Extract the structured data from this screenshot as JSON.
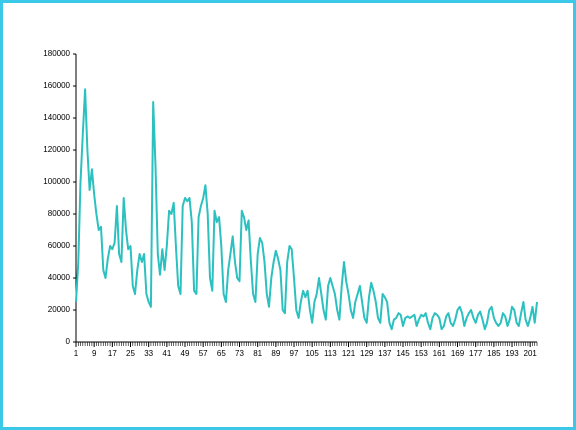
{
  "chart_data": {
    "type": "line",
    "x": [
      1,
      2,
      3,
      4,
      5,
      6,
      7,
      8,
      9,
      10,
      11,
      12,
      13,
      14,
      15,
      16,
      17,
      18,
      19,
      20,
      21,
      22,
      23,
      24,
      25,
      26,
      27,
      28,
      29,
      30,
      31,
      32,
      33,
      34,
      35,
      36,
      37,
      38,
      39,
      40,
      41,
      42,
      43,
      44,
      45,
      46,
      47,
      48,
      49,
      50,
      51,
      52,
      53,
      54,
      55,
      56,
      57,
      58,
      59,
      60,
      61,
      62,
      63,
      64,
      65,
      66,
      67,
      68,
      69,
      70,
      71,
      72,
      73,
      74,
      75,
      76,
      77,
      78,
      79,
      80,
      81,
      82,
      83,
      84,
      85,
      86,
      87,
      88,
      89,
      90,
      91,
      92,
      93,
      94,
      95,
      96,
      97,
      98,
      99,
      100,
      101,
      102,
      103,
      104,
      105,
      106,
      107,
      108,
      109,
      110,
      111,
      112,
      113,
      114,
      115,
      116,
      117,
      118,
      119,
      120,
      121,
      122,
      123,
      124,
      125,
      126,
      127,
      128,
      129,
      130,
      131,
      132,
      133,
      134,
      135,
      136,
      137,
      138,
      139,
      140,
      141,
      142,
      143,
      144,
      145,
      146,
      147,
      148,
      149,
      150,
      151,
      152,
      153,
      154,
      155,
      156,
      157,
      158,
      159,
      160,
      161,
      162,
      163,
      164,
      165,
      166,
      167,
      168,
      169,
      170,
      171,
      172,
      173,
      174,
      175,
      176,
      177,
      178,
      179,
      180,
      181,
      182,
      183,
      184,
      185,
      186,
      187,
      188,
      189,
      190,
      191,
      192,
      193,
      194,
      195,
      196,
      197,
      198,
      199,
      200,
      201,
      202,
      203,
      204
    ],
    "series": [
      {
        "color": "#2cc0c0",
        "values": [
          25000,
          50000,
          100000,
          130000,
          158000,
          120000,
          95000,
          108000,
          92000,
          80000,
          70000,
          72000,
          45000,
          40000,
          52000,
          60000,
          58000,
          62000,
          85000,
          55000,
          50000,
          90000,
          70000,
          58000,
          60000,
          35000,
          30000,
          45000,
          55000,
          50000,
          55000,
          30000,
          25000,
          22000,
          150000,
          110000,
          55000,
          42000,
          58000,
          45000,
          60000,
          82000,
          80000,
          87000,
          60000,
          35000,
          30000,
          85000,
          90000,
          88000,
          90000,
          75000,
          32000,
          30000,
          78000,
          85000,
          90000,
          98000,
          80000,
          40000,
          32000,
          82000,
          75000,
          78000,
          60000,
          30000,
          25000,
          45000,
          55000,
          66000,
          50000,
          40000,
          38000,
          82000,
          78000,
          70000,
          76000,
          50000,
          30000,
          25000,
          55000,
          65000,
          62000,
          50000,
          30000,
          22000,
          40000,
          50000,
          57000,
          52000,
          45000,
          20000,
          18000,
          50000,
          60000,
          58000,
          40000,
          20000,
          15000,
          25000,
          32000,
          28000,
          32000,
          20000,
          12000,
          25000,
          30000,
          40000,
          30000,
          20000,
          14000,
          35000,
          40000,
          35000,
          30000,
          20000,
          14000,
          35000,
          50000,
          38000,
          30000,
          20000,
          15000,
          25000,
          30000,
          35000,
          25000,
          15000,
          12000,
          28000,
          37000,
          32000,
          25000,
          15000,
          12000,
          30000,
          28000,
          25000,
          12000,
          8000,
          14000,
          15000,
          18000,
          17000,
          10000,
          15000,
          16000,
          15000,
          16000,
          17000,
          10000,
          14000,
          17000,
          16000,
          18000,
          12000,
          8000,
          15000,
          18000,
          17000,
          15000,
          8000,
          10000,
          16000,
          18000,
          12000,
          10000,
          14000,
          20000,
          22000,
          18000,
          10000,
          15000,
          18000,
          20000,
          15000,
          12000,
          17000,
          19000,
          14000,
          8000,
          12000,
          20000,
          22000,
          15000,
          12000,
          10000,
          12000,
          18000,
          16000,
          10000,
          14000,
          22000,
          20000,
          12000,
          10000,
          18000,
          25000,
          14000,
          10000,
          15000,
          22000,
          12000,
          25000
        ]
      }
    ],
    "xlim": [
      1,
      204
    ],
    "xticks": [
      1,
      9,
      17,
      25,
      33,
      41,
      49,
      57,
      65,
      73,
      81,
      89,
      97,
      105,
      113,
      121,
      129,
      137,
      145,
      153,
      161,
      169,
      177,
      185,
      193,
      201
    ],
    "ylim": [
      0,
      180000
    ],
    "yticks": [
      0,
      20000,
      40000,
      60000,
      80000,
      100000,
      120000,
      140000,
      160000,
      180000
    ]
  }
}
